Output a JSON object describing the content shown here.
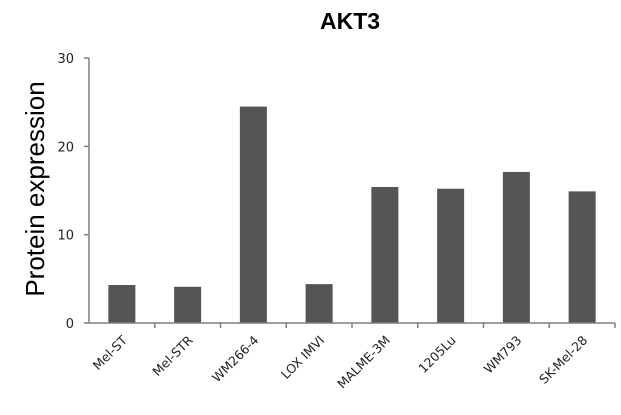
{
  "chart_data": {
    "type": "bar",
    "title": "AKT3",
    "xlabel": "",
    "ylabel": "Protein expression",
    "categories": [
      "Mel-ST",
      "Mel-STR",
      "WM266-4",
      "LOX IMVI",
      "MALME-3M",
      "1205Lu",
      "WM793",
      "SK-Mel-28"
    ],
    "values": [
      4.3,
      4.1,
      24.5,
      4.4,
      15.4,
      15.2,
      17.1,
      14.9
    ],
    "ylim": [
      0,
      30
    ],
    "yticks": [
      "0",
      "10",
      "20",
      "30"
    ],
    "grid": false,
    "bar_color": "#555555"
  }
}
